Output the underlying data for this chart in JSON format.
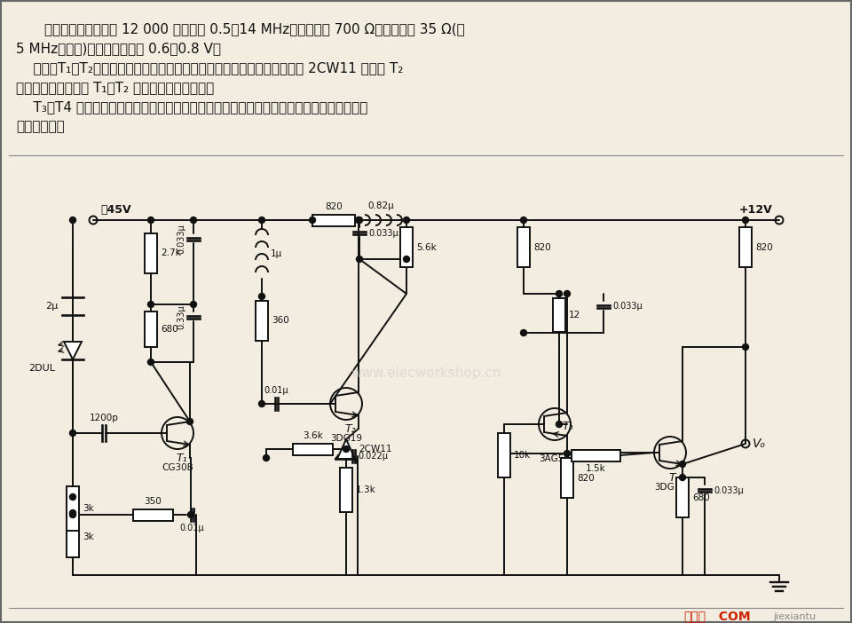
{
  "bg_color": "#f2ede0",
  "line_color": "#111111",
  "text_color": "#111111",
  "desc1": "本电路放大倍数约为 12 000 倍，带宽 0.5～14 MHz，输入阱抗 700 Ω，输出阱抗 35 Ω(在",
  "desc2": "5 MHz处测量)，输出噪声电平 0.6～0.8 V。",
  "desc3": "    图中，T₁，T₂为直接耦合放大器，它们接成并联电流负反馈。稳压二极管 2CW11 提高了 T₂",
  "desc4": "的发射极电位，保证 T₁，T₂ 之间的电位配置关系。",
  "desc5": "    T₃，T4 为直接耦合反馈对，属于电压串联负反馈，降低输出阱抗，借以提高对低负载阱抗",
  "desc6": "的传输系数。",
  "watermark": "www.elecworkshop.cn",
  "footer_red": "接线图",
  "footer_com": "  COM",
  "footer_right": "jiexiantu"
}
